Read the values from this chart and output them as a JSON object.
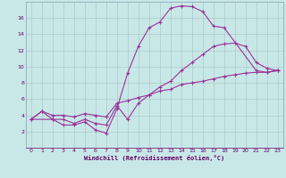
{
  "xlabel": "Windchill (Refroidissement éolien,°C)",
  "bg_color": "#c8e8e8",
  "grid_color": "#b0c8c8",
  "line_color": "#993399",
  "line1_x": [
    0,
    1,
    2,
    3,
    4,
    5,
    6,
    7,
    8,
    9,
    10,
    11,
    12,
    13,
    14,
    15,
    16,
    17,
    18,
    21,
    22,
    23
  ],
  "line1_y": [
    3.5,
    4.5,
    3.5,
    2.8,
    2.8,
    3.2,
    2.2,
    1.8,
    4.8,
    9.2,
    12.5,
    14.8,
    15.5,
    17.2,
    17.5,
    17.4,
    16.8,
    15.0,
    14.8,
    9.5,
    9.3,
    9.6
  ],
  "line1_markers_x": [
    0,
    1,
    2,
    3,
    4,
    5,
    6,
    7,
    8,
    9,
    10,
    11,
    12,
    13,
    14,
    15,
    16,
    17,
    18,
    21,
    22,
    23
  ],
  "line2_x": [
    0,
    2,
    3,
    4,
    5,
    6,
    7,
    8,
    9,
    10,
    11,
    12,
    13,
    14,
    15,
    16,
    17,
    18,
    19,
    20,
    21,
    22,
    23
  ],
  "line2_y": [
    3.5,
    3.5,
    3.5,
    3.0,
    3.5,
    3.0,
    2.8,
    5.2,
    3.5,
    5.5,
    6.5,
    7.5,
    8.2,
    9.5,
    10.5,
    11.5,
    12.5,
    12.8,
    12.9,
    12.5,
    10.5,
    9.8,
    9.5
  ],
  "line3_x": [
    0,
    1,
    2,
    3,
    4,
    5,
    6,
    7,
    8,
    9,
    10,
    11,
    12,
    13,
    14,
    15,
    16,
    17,
    18,
    19,
    20,
    21,
    22,
    23
  ],
  "line3_y": [
    3.5,
    4.5,
    4.0,
    4.0,
    3.8,
    4.2,
    4.0,
    3.8,
    5.5,
    5.8,
    6.2,
    6.5,
    7.0,
    7.2,
    7.8,
    8.0,
    8.2,
    8.5,
    8.8,
    9.0,
    9.2,
    9.3,
    9.3,
    9.5
  ],
  "ylim": [
    0,
    18
  ],
  "xlim": [
    -0.5,
    23.5
  ],
  "yticks": [
    2,
    4,
    6,
    8,
    10,
    12,
    14,
    16
  ],
  "xticks": [
    0,
    1,
    2,
    3,
    4,
    5,
    6,
    7,
    8,
    9,
    10,
    11,
    12,
    13,
    14,
    15,
    16,
    17,
    18,
    19,
    20,
    21,
    22,
    23
  ]
}
